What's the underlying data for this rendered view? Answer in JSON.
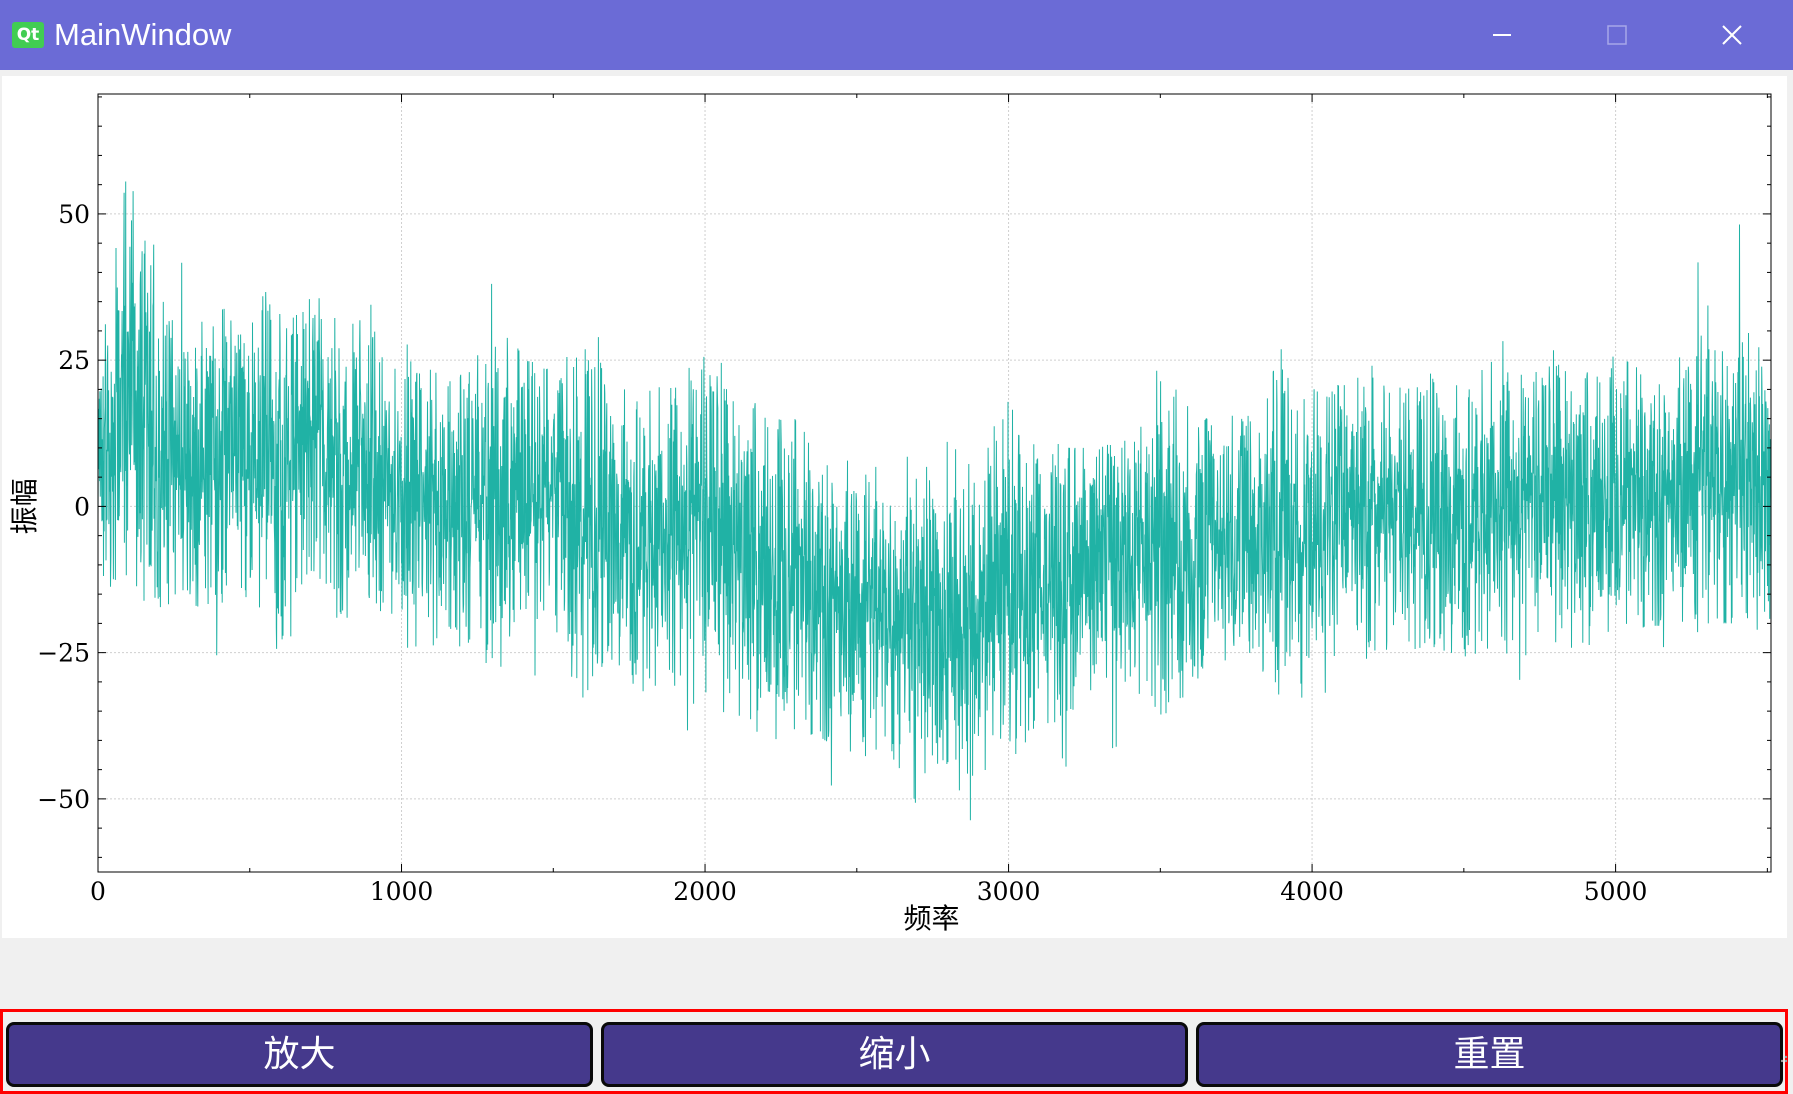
{
  "window": {
    "title": "MainWindow",
    "logo_text": "Qt",
    "titlebar_color": "#6b6bd6",
    "controls": [
      "minimize-icon",
      "maximize-icon",
      "close-icon"
    ]
  },
  "toolbar": {
    "zoom_in_label": "放大",
    "zoom_out_label": "缩小",
    "reset_label": "重置",
    "button_color": "#45398c",
    "highlight_border_color": "#ff0000"
  },
  "chart_data": {
    "type": "line",
    "title": "",
    "xlabel": "频率",
    "ylabel": "振幅",
    "xlim": [
      0,
      5512
    ],
    "ylim": [
      -62.5,
      70.5
    ],
    "x_ticks": [
      0,
      1000,
      2000,
      3000,
      4000,
      5000
    ],
    "y_ticks": [
      -50,
      -25,
      0,
      25,
      50
    ],
    "x_tick_labels": [
      "0",
      "1000",
      "2000",
      "3000",
      "4000",
      "5000"
    ],
    "y_tick_labels": [
      "−50",
      "−25",
      "0",
      "25",
      "50"
    ],
    "grid": true,
    "line_color": "#20b2a5",
    "series": [
      {
        "x": [
          0,
          100,
          200,
          300,
          400,
          500,
          600,
          700,
          800,
          900,
          1000,
          1100,
          1200,
          1300,
          1400,
          1500,
          1600,
          1700,
          1800,
          1900,
          2000,
          2100,
          2200,
          2300,
          2400,
          2500,
          2600,
          2700,
          2800,
          2900,
          3000,
          3100,
          3200,
          3300,
          3400,
          3500,
          3600,
          3700,
          3800,
          3900,
          4000,
          4100,
          4200,
          4300,
          4400,
          4500,
          4600,
          4700,
          4800,
          4900,
          5000,
          5100,
          5200,
          5300,
          5400,
          5500
        ],
        "values": [
          5,
          22,
          10,
          6,
          10,
          8,
          6,
          12,
          7,
          5,
          3,
          2,
          0,
          2,
          4,
          0,
          -2,
          -3,
          -6,
          -5,
          -5,
          -8,
          -12,
          -12,
          -14,
          -18,
          -18,
          -20,
          -18,
          -20,
          -16,
          -14,
          -12,
          -10,
          -8,
          -6,
          -8,
          -6,
          -5,
          -3,
          -4,
          -2,
          0,
          -1,
          -2,
          -2,
          0,
          -2,
          1,
          -1,
          2,
          2,
          3,
          5,
          6,
          2
        ],
        "y_low": [
          -12,
          -20,
          -22,
          -15,
          -28,
          -25,
          -25,
          -20,
          -28,
          -25,
          -25,
          -25,
          -30,
          -28,
          -30,
          -30,
          -35,
          -35,
          -40,
          -42,
          -40,
          -42,
          -50,
          -48,
          -48,
          -52,
          -55,
          -52,
          -50,
          -55,
          -48,
          -48,
          -45,
          -45,
          -40,
          -38,
          -42,
          -38,
          -38,
          -36,
          -35,
          -36,
          -30,
          -30,
          -32,
          -34,
          -30,
          -33,
          -28,
          -30,
          -26,
          -25,
          -25,
          -20,
          -20,
          -22
        ],
        "y_high": [
          28,
          70,
          42,
          42,
          36,
          32,
          45,
          36,
          38,
          35,
          30,
          25,
          28,
          40,
          25,
          24,
          40,
          22,
          22,
          20,
          34,
          22,
          18,
          16,
          14,
          8,
          6,
          10,
          12,
          8,
          20,
          12,
          10,
          10,
          12,
          35,
          16,
          14,
          18,
          36,
          25,
          20,
          32,
          25,
          25,
          22,
          30,
          24,
          30,
          26,
          28,
          30,
          28,
          50,
          50,
          30
        ]
      }
    ]
  }
}
